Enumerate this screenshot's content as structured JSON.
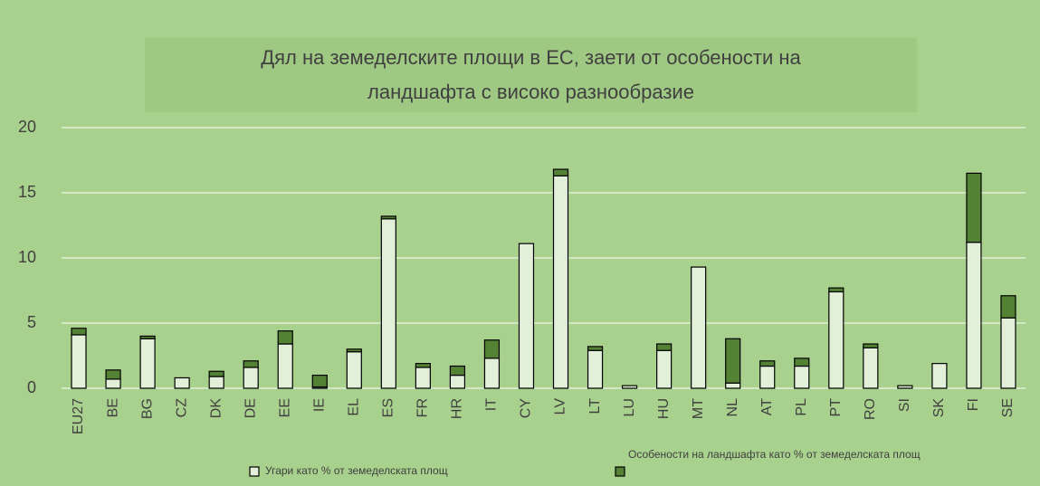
{
  "chart_data": {
    "type": "stacked-bar",
    "title": "Дял на земеделските площи в ЕС, заети от особености на ландшафта с високо разнообразие",
    "categories": [
      "EU27",
      "BE",
      "BG",
      "CZ",
      "DK",
      "DE",
      "EE",
      "IE",
      "EL",
      "ES",
      "FR",
      "HR",
      "IT",
      "CY",
      "LV",
      "LT",
      "LU",
      "HU",
      "MT",
      "NL",
      "AT",
      "PL",
      "PT",
      "RO",
      "SI",
      "SK",
      "FI",
      "SE"
    ],
    "series": [
      {
        "name": "Угари като % от земеделската площ",
        "color": "#e2efd9",
        "values": [
          4.1,
          0.7,
          3.8,
          0.8,
          0.9,
          1.6,
          3.4,
          0.1,
          2.8,
          13.0,
          1.6,
          1.0,
          2.3,
          11.1,
          16.3,
          2.9,
          0.2,
          2.9,
          9.3,
          0.4,
          1.7,
          1.7,
          7.4,
          3.1,
          0.2,
          1.9,
          11.2,
          5.4
        ]
      },
      {
        "name": "Особености на ландшафта като % от земеделската площ",
        "color": "#548235",
        "values": [
          0.5,
          0.7,
          0.2,
          0,
          0.4,
          0.5,
          1.0,
          0.9,
          0.2,
          0.2,
          0.3,
          0.7,
          1.4,
          0,
          0.5,
          0.3,
          0,
          0.5,
          0,
          3.4,
          0.4,
          0.6,
          0.3,
          0.3,
          0,
          0,
          5.3,
          1.7
        ]
      }
    ],
    "ylim": [
      0,
      20
    ],
    "yticks": [
      0,
      5,
      10,
      15,
      20
    ],
    "grid": true
  }
}
